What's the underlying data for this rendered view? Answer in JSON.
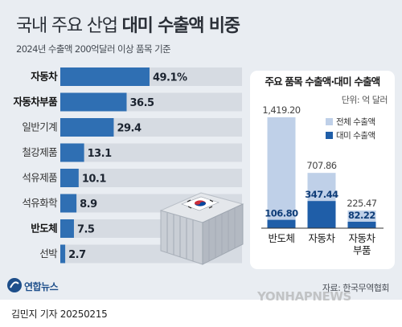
{
  "header": {
    "title_prefix": "국내 주요 산업",
    "title_emph": "대미 수출액 비중",
    "subtitle": "2024년 수출액 200억달러 이상 품목 기준"
  },
  "chart_data": [
    {
      "type": "bar",
      "orientation": "horizontal",
      "categories": [
        "자동차",
        "자동차부품",
        "일반기계",
        "철강제품",
        "석유제품",
        "석유화학",
        "반도체",
        "선박"
      ],
      "values": [
        49.1,
        36.5,
        29.4,
        13.1,
        10.1,
        8.9,
        7.5,
        2.7
      ],
      "value_labels": [
        "49.1%",
        "36.5",
        "29.4",
        "13.1",
        "10.1",
        "8.9",
        "7.5",
        "2.7"
      ],
      "bold_categories": [
        "자동차",
        "자동차부품",
        "반도체"
      ],
      "xlim": [
        0,
        100
      ],
      "colors": {
        "bar": "#2f6fb3",
        "track": "#d6dbe2"
      }
    },
    {
      "type": "bar",
      "title": "주요 품목 수출액·대미 수출액",
      "unit": "단위: 억 달러",
      "categories": [
        "반도체",
        "자동차",
        "자동차 부품"
      ],
      "category_lines": [
        [
          "반도체"
        ],
        [
          "자동차"
        ],
        [
          "자동차",
          "부품"
        ]
      ],
      "series": [
        {
          "name": "전체 수출액",
          "values": [
            1419.2,
            707.86,
            225.47
          ],
          "labels": [
            "1,419.20",
            "707.86",
            "225.47"
          ],
          "color": "#bfd0e8"
        },
        {
          "name": "대미 수출액",
          "values": [
            106.8,
            347.44,
            82.22
          ],
          "labels": [
            "106.80",
            "347.44",
            "82.22"
          ],
          "color": "#1f5ea8"
        }
      ],
      "overlay": true,
      "ylim": [
        0,
        1419.2
      ],
      "legend": "top-right"
    }
  ],
  "source": "자료: 한국무역협회",
  "logo_text": "연합뉴스",
  "byline": "김민지 기자  20250215",
  "watermark": "YONHAPNEWS"
}
